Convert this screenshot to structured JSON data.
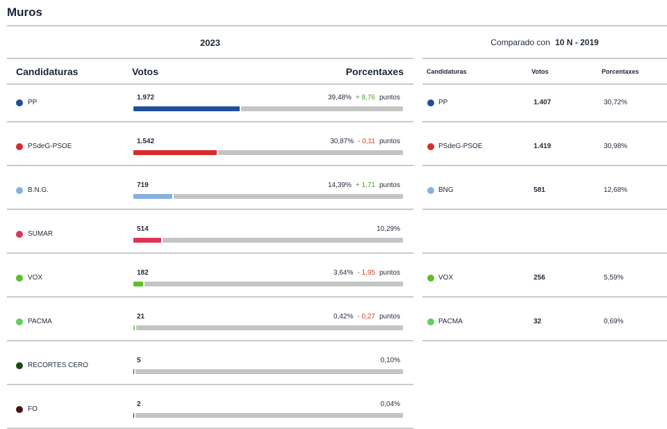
{
  "municipality": "Muros",
  "election_year": "2023",
  "comparison": {
    "prefix": "Comparado con",
    "election": "10 N - 2019"
  },
  "left_headers": {
    "party": "Candidaturas",
    "votes": "Votos",
    "pct": "Porcentaxes"
  },
  "right_headers": {
    "party": "Candidaturas",
    "votes": "Votos",
    "pct": "Porcentaxes"
  },
  "diff_unit": "puntos",
  "parties_2023": [
    {
      "name": "PP",
      "votes": "1.972",
      "pct": "39,48%",
      "diff": "+ 8,76",
      "diff_sign": "pos",
      "share": 39.48,
      "color": "#1f4e9c"
    },
    {
      "name": "PSdeG-PSOE",
      "votes": "1.542",
      "pct": "30,87%",
      "diff": "- 0,11",
      "diff_sign": "neg",
      "share": 30.87,
      "color": "#d92b2b"
    },
    {
      "name": "B.N.G.",
      "votes": "719",
      "pct": "14,39%",
      "diff": "+ 1,71",
      "diff_sign": "pos",
      "share": 14.39,
      "color": "#86b2e0"
    },
    {
      "name": "SUMAR",
      "votes": "514",
      "pct": "10,29%",
      "diff": "",
      "diff_sign": "",
      "share": 10.29,
      "color": "#e03157"
    },
    {
      "name": "VOX",
      "votes": "182",
      "pct": "3,64%",
      "diff": "- 1,95",
      "diff_sign": "neg",
      "share": 3.64,
      "color": "#5bbf2c"
    },
    {
      "name": "PACMA",
      "votes": "21",
      "pct": "0,42%",
      "diff": "- 0,27",
      "diff_sign": "neg",
      "share": 0.42,
      "color": "#5fd05a"
    },
    {
      "name": "RECORTES CERO",
      "votes": "5",
      "pct": "0,10%",
      "diff": "",
      "diff_sign": "",
      "share": 0.1,
      "color": "#1d4a12"
    },
    {
      "name": "FO",
      "votes": "2",
      "pct": "0,04%",
      "diff": "",
      "diff_sign": "",
      "share": 0.04,
      "color": "#4a1414"
    }
  ],
  "parties_2019": [
    {
      "name": "PP",
      "votes": "1.407",
      "pct": "30,72%",
      "color": "#1f4e9c"
    },
    {
      "name": "PSdeG-PSOE",
      "votes": "1.419",
      "pct": "30,98%",
      "color": "#d92b2b"
    },
    {
      "name": "BNG",
      "votes": "581",
      "pct": "12,68%",
      "color": "#86b2e0"
    },
    null,
    {
      "name": "VOX",
      "votes": "256",
      "pct": "5,59%",
      "color": "#5bbf2c"
    },
    {
      "name": "PACMA",
      "votes": "32",
      "pct": "0,69%",
      "color": "#5fd05a"
    }
  ]
}
